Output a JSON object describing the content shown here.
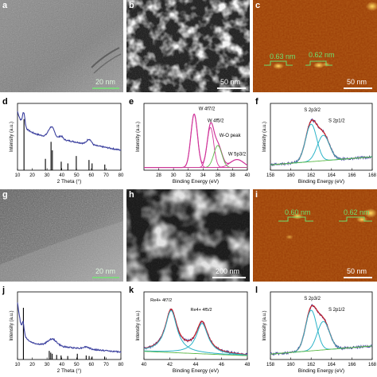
{
  "panels": {
    "a": {
      "label": "a",
      "scale": "20 nm"
    },
    "b": {
      "label": "b",
      "scale": "50 nm"
    },
    "c": {
      "label": "c",
      "scale": "50 nm",
      "heights": [
        "0.63 nm",
        "0.62 nm"
      ]
    },
    "g": {
      "label": "g",
      "scale": "20 nm"
    },
    "h": {
      "label": "h",
      "scale": "200 nm"
    },
    "i": {
      "label": "i",
      "scale": "50 nm",
      "heights": [
        "0.60 nm",
        "0.62 nm"
      ]
    }
  },
  "colors": {
    "trace": "#3a3f9e",
    "fit_red": "#c8202a",
    "fit_cyan": "#2bb3c8",
    "fit_green": "#5cb848",
    "fit_magenta": "#d0359a",
    "afm_green": "#6ee06e"
  },
  "chart_data": [
    {
      "id": "d",
      "type": "line",
      "label": "d",
      "xlabel": "2 Theta (°)",
      "ylabel": "Intensity (a.u.)",
      "xlim": [
        10,
        80
      ],
      "xticks": [
        10,
        20,
        30,
        40,
        50,
        60,
        70,
        80
      ],
      "sticks": [
        {
          "x": 14.4,
          "h": 0.9
        },
        {
          "x": 28.9,
          "h": 0.2
        },
        {
          "x": 32.7,
          "h": 0.5
        },
        {
          "x": 33.6,
          "h": 0.35
        },
        {
          "x": 39.6,
          "h": 0.15
        },
        {
          "x": 44.1,
          "h": 0.12
        },
        {
          "x": 49.8,
          "h": 0.25
        },
        {
          "x": 58.4,
          "h": 0.18
        },
        {
          "x": 60.5,
          "h": 0.12
        },
        {
          "x": 69.1,
          "h": 0.1
        }
      ]
    },
    {
      "id": "e",
      "type": "line",
      "label": "e",
      "xlabel": "Binding Energy (eV)",
      "ylabel": "Intensity (a.u.)",
      "xlim": [
        26,
        40
      ],
      "xticks": [
        28,
        30,
        32,
        34,
        36,
        38,
        40
      ],
      "annotations": [
        "W 4f7/2",
        "W 4f5/2",
        "W-O peak",
        "W 5p3/2"
      ]
    },
    {
      "id": "f",
      "type": "line",
      "label": "f",
      "xlabel": "Binding Energy (eV)",
      "ylabel": "Intensity (a.u.)",
      "xlim": [
        158,
        168
      ],
      "xticks": [
        158,
        160,
        162,
        164,
        166,
        168
      ],
      "annotations": [
        "S 2p3/2",
        "S 2p1/2"
      ]
    },
    {
      "id": "j",
      "type": "line",
      "label": "j",
      "xlabel": "2 Theta (°)",
      "ylabel": "Intensity (a.u.)",
      "xlim": [
        10,
        80
      ],
      "xticks": [
        10,
        20,
        30,
        40,
        50,
        60,
        70,
        80
      ],
      "sticks": [
        {
          "x": 14.0,
          "h": 0.9
        },
        {
          "x": 31.5,
          "h": 0.15
        },
        {
          "x": 32.5,
          "h": 0.12
        },
        {
          "x": 33.5,
          "h": 0.1
        },
        {
          "x": 36.5,
          "h": 0.08
        },
        {
          "x": 39.5,
          "h": 0.07
        },
        {
          "x": 44.0,
          "h": 0.06
        },
        {
          "x": 50.5,
          "h": 0.1
        },
        {
          "x": 56.5,
          "h": 0.07
        },
        {
          "x": 58.5,
          "h": 0.06
        },
        {
          "x": 60.5,
          "h": 0.05
        },
        {
          "x": 69.0,
          "h": 0.05
        }
      ]
    },
    {
      "id": "k",
      "type": "line",
      "label": "k",
      "xlabel": "Binding Energy (eV)",
      "ylabel": "Intensity (a.u.)",
      "xlim": [
        40,
        48
      ],
      "xticks": [
        40,
        42,
        44,
        46,
        48
      ],
      "annotations": [
        "Re4+ 4f7/2",
        "Re4+ 4f5/2"
      ]
    },
    {
      "id": "l",
      "type": "line",
      "label": "l",
      "xlabel": "Binding Energy (eV)",
      "ylabel": "Intensity (a.u.)",
      "xlim": [
        158,
        168
      ],
      "xticks": [
        158,
        160,
        162,
        164,
        166,
        168
      ],
      "annotations": [
        "S 2p3/2",
        "S 2p1/2"
      ]
    }
  ]
}
